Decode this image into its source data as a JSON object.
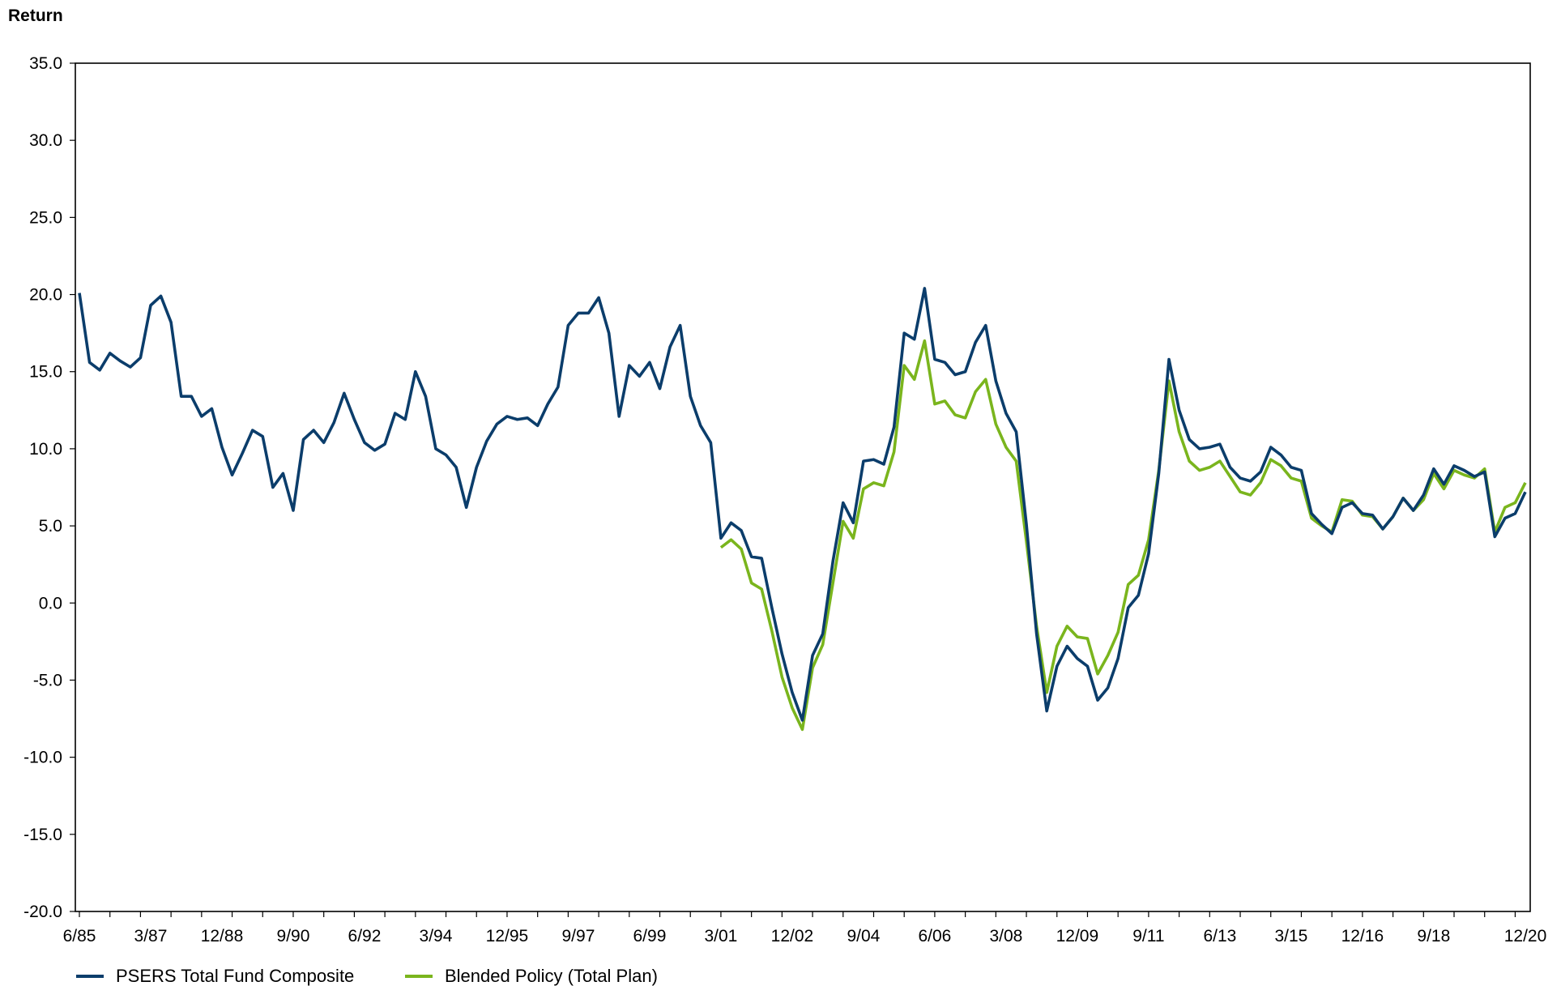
{
  "chart_data": {
    "type": "line",
    "title": "",
    "xlabel": "",
    "ylabel": "Return",
    "ylim": [
      -20,
      35
    ],
    "yticks": [
      35.0,
      30.0,
      25.0,
      20.0,
      15.0,
      10.0,
      5.0,
      0.0,
      -5.0,
      -10.0,
      -15.0,
      -20.0
    ],
    "ytick_labels": [
      "35.0",
      "30.0",
      "25.0",
      "20.0",
      "15.0",
      "10.0",
      "5.0",
      "0.0",
      "-5.0",
      "-10.0",
      "-15.0",
      "-20.0"
    ],
    "xtick_labels": [
      "6/85",
      "3/87",
      "12/88",
      "9/90",
      "6/92",
      "3/94",
      "12/95",
      "9/97",
      "6/99",
      "3/01",
      "12/02",
      "9/04",
      "6/06",
      "3/08",
      "12/09",
      "9/11",
      "6/13",
      "3/15",
      "12/16",
      "9/18",
      "12/20"
    ],
    "grid": false,
    "legend_position": "bottom-left",
    "colors": {
      "PSERS Total Fund Composite": "#0b3d6b",
      "Blended Policy (Total Plan)": "#7ab51d"
    },
    "series": [
      {
        "name": "PSERS Total Fund Composite",
        "x_start": "6/85",
        "x_end": "12/20",
        "frequency": "quarterly",
        "values": [
          20.1,
          15.6,
          15.1,
          16.2,
          15.7,
          15.3,
          15.9,
          19.3,
          19.9,
          18.2,
          13.4,
          13.4,
          12.1,
          12.6,
          10.1,
          8.3,
          9.7,
          11.2,
          10.8,
          7.5,
          8.4,
          6.0,
          10.6,
          11.2,
          10.4,
          11.7,
          13.6,
          11.9,
          10.4,
          9.9,
          10.3,
          12.3,
          11.9,
          15.0,
          13.4,
          10.0,
          9.6,
          8.8,
          6.2,
          8.8,
          10.5,
          11.6,
          12.1,
          11.9,
          12.0,
          11.5,
          12.9,
          14.0,
          18.0,
          18.8,
          18.8,
          19.8,
          17.5,
          12.1,
          15.4,
          14.7,
          15.6,
          13.9,
          16.6,
          18.0,
          13.4,
          11.5,
          10.4,
          4.2,
          5.2,
          4.7,
          3.0,
          2.9,
          -0.3,
          -3.3,
          -5.8,
          -7.6,
          -3.4,
          -2.0,
          2.7,
          6.5,
          5.2,
          9.2,
          9.3,
          9.0,
          11.4,
          17.5,
          17.1,
          20.4,
          15.8,
          15.6,
          14.8,
          15.0,
          16.9,
          18.0,
          14.4,
          12.3,
          11.1,
          5.1,
          -2.0,
          -7.0,
          -4.1,
          -2.8,
          -3.6,
          -4.1,
          -6.3,
          -5.5,
          -3.6,
          -0.3,
          0.5,
          3.2,
          8.4,
          15.8,
          12.5,
          10.6,
          10.0,
          10.1,
          10.3,
          8.8,
          8.1,
          7.9,
          8.5,
          10.1,
          9.6,
          8.8,
          8.6,
          5.8,
          5.1,
          4.5,
          6.2,
          6.5,
          5.8,
          5.7,
          4.8,
          5.6,
          6.8,
          6.0,
          7.0,
          8.7,
          7.7,
          8.9,
          8.6,
          8.2,
          8.5,
          4.3,
          5.5,
          5.8,
          7.2
        ]
      },
      {
        "name": "Blended Policy (Total Plan)",
        "x_start": "3/01",
        "x_end": "12/20",
        "frequency": "quarterly",
        "values": [
          3.6,
          4.1,
          3.5,
          1.3,
          0.9,
          -1.8,
          -4.8,
          -6.8,
          -8.2,
          -4.2,
          -2.7,
          1.3,
          5.3,
          4.2,
          7.4,
          7.8,
          7.6,
          9.8,
          15.4,
          14.5,
          17.0,
          12.9,
          13.1,
          12.2,
          12.0,
          13.7,
          14.5,
          11.6,
          10.1,
          9.2,
          4.0,
          -1.5,
          -5.8,
          -2.8,
          -1.5,
          -2.2,
          -2.3,
          -4.6,
          -3.4,
          -1.9,
          1.2,
          1.8,
          4.1,
          8.6,
          14.4,
          11.1,
          9.2,
          8.6,
          8.8,
          9.2,
          8.2,
          7.2,
          7.0,
          7.8,
          9.3,
          8.9,
          8.1,
          7.9,
          5.5,
          5.0,
          4.6,
          6.7,
          6.6,
          5.7,
          5.6,
          4.8,
          5.6,
          6.8,
          6.0,
          6.7,
          8.4,
          7.4,
          8.6,
          8.3,
          8.1,
          8.7,
          4.6,
          6.2,
          6.5,
          7.8
        ]
      }
    ]
  }
}
